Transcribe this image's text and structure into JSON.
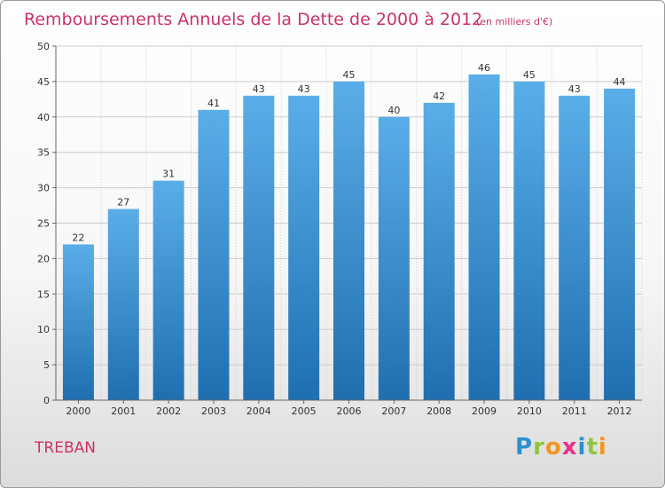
{
  "title": "Remboursements Annuels de la Dette de 2000 à 2012",
  "subtitle": "(en milliers d'€)",
  "commune": "TREBAN",
  "logo": {
    "text": "Proxiti",
    "letters": [
      "P",
      "r",
      "o",
      "x",
      "i",
      "t",
      "i"
    ],
    "colors": [
      "#2d8fd0",
      "#8cc63f",
      "#f7941d",
      "#e8318a",
      "#2d8fd0",
      "#8cc63f",
      "#f7941d"
    ]
  },
  "colors": {
    "title": "#c8336b",
    "bar_top": "#5aaee8",
    "bar_bottom": "#1f6fb0",
    "grid": "#cccccc"
  },
  "chart_data": {
    "type": "bar",
    "title": "Remboursements Annuels de la Dette de 2000 à 2012",
    "subtitle": "(en milliers d'€)",
    "categories": [
      "2000",
      "2001",
      "2002",
      "2003",
      "2004",
      "2005",
      "2006",
      "2007",
      "2008",
      "2009",
      "2010",
      "2011",
      "2012"
    ],
    "values": [
      22,
      27,
      31,
      41,
      43,
      43,
      45,
      40,
      42,
      46,
      45,
      43,
      44
    ],
    "ylim": [
      0,
      50
    ],
    "yticks": [
      0,
      5,
      10,
      15,
      20,
      25,
      30,
      35,
      40,
      45,
      50
    ],
    "grid": true,
    "xlabel": "",
    "ylabel": ""
  }
}
